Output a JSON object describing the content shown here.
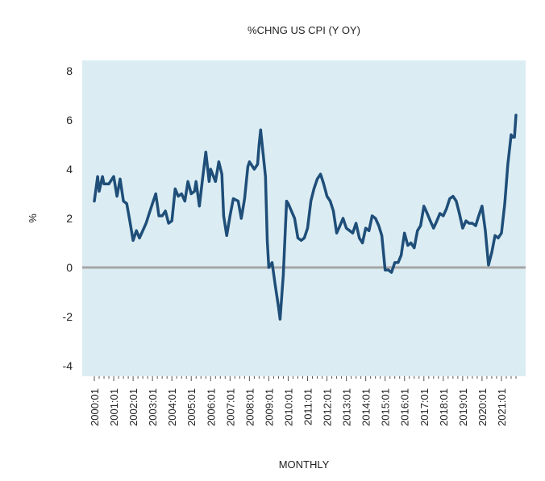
{
  "chart_data": {
    "type": "line",
    "title": "%CHNG US CPI (Y OY)",
    "xlabel": "MONTHLY",
    "ylabel": "%",
    "ylim": [
      -4.5,
      8.5
    ],
    "yticks": [
      -4,
      -2,
      0,
      2,
      4,
      6,
      8
    ],
    "ytick_labels": [
      "-4",
      "-2",
      "0",
      "2",
      "4",
      "6",
      "8"
    ],
    "xlim": [
      2000.0,
      2021.75
    ],
    "xticks": [
      2000.0,
      2001.0,
      2002.0,
      2003.0,
      2004.0,
      2005.0,
      2006.0,
      2007.0,
      2008.0,
      2009.0,
      2010.0,
      2011.0,
      2012.0,
      2013.0,
      2014.0,
      2015.0,
      2016.0,
      2017.0,
      2018.0,
      2019.0,
      2020.0,
      2021.0
    ],
    "xtick_labels": [
      "2000:01",
      "2001:01",
      "2002:01",
      "2003:01",
      "2004:01",
      "2005:01",
      "2006:01",
      "2007:01",
      "2008:01",
      "2009:01",
      "2010:01",
      "2011:01",
      "2012:01",
      "2013:01",
      "2014:01",
      "2015:01",
      "2016:01",
      "2017:01",
      "2018:01",
      "2019:01",
      "2020:01",
      "2021:01"
    ],
    "zero_line": 0,
    "grid": false,
    "colors": {
      "plot_background": "#dbedf3",
      "line": "#1f4e79",
      "zero_line": "#a6a6a6"
    },
    "series": [
      {
        "name": "%CHNG US CPI (Y OY)",
        "x": [
          2000.0,
          2000.17,
          2000.25,
          2000.42,
          2000.5,
          2000.75,
          2001.0,
          2001.17,
          2001.33,
          2001.5,
          2001.67,
          2001.83,
          2002.0,
          2002.17,
          2002.33,
          2002.5,
          2002.67,
          2002.83,
          2003.0,
          2003.17,
          2003.33,
          2003.5,
          2003.67,
          2003.83,
          2004.0,
          2004.17,
          2004.33,
          2004.5,
          2004.67,
          2004.83,
          2005.0,
          2005.17,
          2005.25,
          2005.42,
          2005.58,
          2005.75,
          2005.92,
          2006.0,
          2006.25,
          2006.42,
          2006.58,
          2006.67,
          2006.83,
          2007.0,
          2007.17,
          2007.42,
          2007.58,
          2007.75,
          2007.92,
          2008.0,
          2008.25,
          2008.42,
          2008.5,
          2008.58,
          2008.67,
          2008.83,
          2008.92,
          2009.0,
          2009.17,
          2009.33,
          2009.5,
          2009.58,
          2009.75,
          2009.92,
          2010.0,
          2010.17,
          2010.33,
          2010.5,
          2010.67,
          2010.83,
          2011.0,
          2011.17,
          2011.33,
          2011.5,
          2011.67,
          2011.83,
          2012.0,
          2012.17,
          2012.33,
          2012.5,
          2012.67,
          2012.83,
          2013.0,
          2013.17,
          2013.33,
          2013.5,
          2013.67,
          2013.83,
          2014.0,
          2014.17,
          2014.33,
          2014.5,
          2014.67,
          2014.83,
          2015.0,
          2015.17,
          2015.33,
          2015.5,
          2015.67,
          2015.83,
          2016.0,
          2016.17,
          2016.33,
          2016.5,
          2016.67,
          2016.83,
          2017.0,
          2017.17,
          2017.33,
          2017.5,
          2017.67,
          2017.83,
          2018.0,
          2018.17,
          2018.33,
          2018.5,
          2018.67,
          2018.83,
          2019.0,
          2019.17,
          2019.33,
          2019.5,
          2019.67,
          2019.83,
          2020.0,
          2020.17,
          2020.33,
          2020.5,
          2020.67,
          2020.83,
          2021.0,
          2021.17,
          2021.33,
          2021.5,
          2021.58,
          2021.67,
          2021.75
        ],
        "values": [
          2.7,
          3.7,
          3.1,
          3.7,
          3.4,
          3.4,
          3.7,
          2.9,
          3.6,
          2.7,
          2.6,
          1.9,
          1.1,
          1.5,
          1.2,
          1.5,
          1.8,
          2.2,
          2.6,
          3.0,
          2.1,
          2.1,
          2.3,
          1.8,
          1.9,
          3.2,
          2.9,
          3.0,
          2.7,
          3.5,
          3.0,
          3.1,
          3.5,
          2.5,
          3.6,
          4.7,
          3.5,
          4.0,
          3.5,
          4.3,
          3.8,
          2.1,
          1.3,
          2.1,
          2.8,
          2.7,
          2.0,
          2.8,
          4.1,
          4.3,
          4.0,
          4.2,
          5.0,
          5.6,
          4.9,
          3.7,
          1.1,
          0.0,
          0.2,
          -0.7,
          -1.6,
          -2.1,
          -0.3,
          2.7,
          2.6,
          2.3,
          2.0,
          1.2,
          1.1,
          1.2,
          1.6,
          2.7,
          3.2,
          3.6,
          3.8,
          3.4,
          2.9,
          2.7,
          2.3,
          1.4,
          1.7,
          2.0,
          1.6,
          1.5,
          1.4,
          1.8,
          1.2,
          1.0,
          1.6,
          1.5,
          2.1,
          2.0,
          1.7,
          1.3,
          -0.1,
          -0.1,
          -0.2,
          0.2,
          0.2,
          0.5,
          1.4,
          0.9,
          1.0,
          0.8,
          1.5,
          1.7,
          2.5,
          2.2,
          1.9,
          1.6,
          1.9,
          2.2,
          2.1,
          2.4,
          2.8,
          2.9,
          2.7,
          2.2,
          1.6,
          1.9,
          1.8,
          1.8,
          1.7,
          2.1,
          2.5,
          1.5,
          0.1,
          0.6,
          1.3,
          1.2,
          1.4,
          2.6,
          4.2,
          5.4,
          5.3,
          5.3,
          6.2
        ]
      }
    ]
  }
}
